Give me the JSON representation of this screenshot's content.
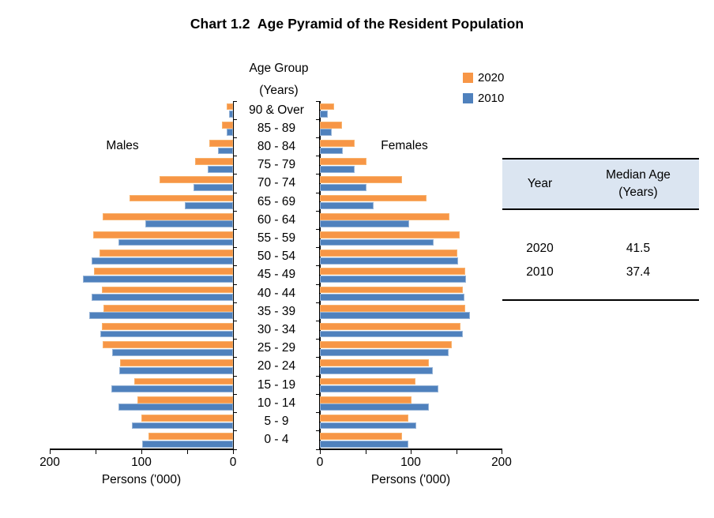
{
  "chart_data": {
    "type": "bar",
    "variant": "population-pyramid",
    "title": "Chart 1.2  Age Pyramid of the Resident Population",
    "center_axis_title_line1": "Age Group",
    "center_axis_title_line2": "(Years)",
    "xlabel": "Persons ('000)",
    "xlim": [
      0,
      200
    ],
    "x_ticks": [
      0,
      50,
      100,
      150,
      200
    ],
    "x_tick_labels": [
      0,
      100,
      200
    ],
    "grid": false,
    "legend_position": "top-right",
    "legend": [
      {
        "label": "2020",
        "color": "#F79646"
      },
      {
        "label": "2010",
        "color": "#4F81BD"
      }
    ],
    "side_labels": {
      "left": "Males",
      "right": "Females"
    },
    "categories": [
      "90 & Over",
      "85 - 89",
      "80 - 84",
      "75 - 79",
      "70 - 74",
      "65 - 69",
      "60 - 64",
      "55 - 59",
      "50 - 54",
      "45 - 49",
      "40 - 44",
      "35 - 39",
      "30 - 34",
      "25 - 29",
      "20 - 24",
      "15 - 19",
      "10 - 14",
      "5 - 9",
      "0 - 4"
    ],
    "series": [
      {
        "name": "Males 2020",
        "side": "left",
        "year": "2020",
        "values": [
          7,
          12,
          26,
          41,
          80,
          113,
          142,
          153,
          146,
          152,
          143,
          141,
          143,
          142,
          123,
          108,
          104,
          100,
          92
        ]
      },
      {
        "name": "Males 2010",
        "side": "left",
        "year": "2010",
        "values": [
          4,
          7,
          16,
          28,
          43,
          53,
          96,
          125,
          154,
          164,
          154,
          157,
          145,
          132,
          124,
          133,
          125,
          110,
          99
        ]
      },
      {
        "name": "Females 2020",
        "side": "right",
        "year": "2020",
        "values": [
          16,
          24,
          38,
          51,
          90,
          117,
          143,
          154,
          151,
          160,
          157,
          160,
          155,
          145,
          120,
          105,
          101,
          97,
          90
        ]
      },
      {
        "name": "Females 2010",
        "side": "right",
        "year": "2010",
        "values": [
          9,
          13,
          25,
          38,
          51,
          59,
          98,
          125,
          152,
          161,
          159,
          165,
          157,
          142,
          124,
          130,
          120,
          106,
          97
        ]
      }
    ]
  },
  "table": {
    "columns": [
      {
        "header": "Year"
      },
      {
        "header": "Median Age",
        "header_sub": "(Years)"
      }
    ],
    "rows": [
      [
        "2020",
        "41.5"
      ],
      [
        "2010",
        "37.4"
      ]
    ]
  }
}
